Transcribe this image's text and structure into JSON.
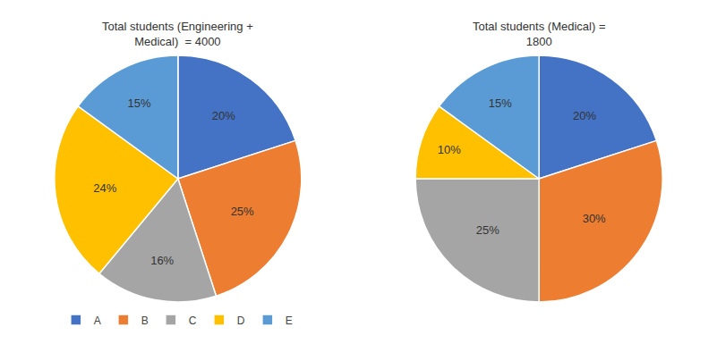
{
  "chart_data": [
    {
      "type": "pie",
      "title": "Total students (Engineering +\nMedical)  = 4000",
      "categories": [
        "A",
        "B",
        "C",
        "D",
        "E"
      ],
      "values": [
        20,
        25,
        16,
        24,
        15
      ],
      "value_labels": [
        "20%",
        "25%",
        "16%",
        "24%",
        "15%"
      ],
      "colors": [
        "#4472c4",
        "#ed7d31",
        "#a5a5a5",
        "#ffc000",
        "#5b9bd5"
      ],
      "data_labels": true,
      "legend": "bottom"
    },
    {
      "type": "pie",
      "title": "Total students (Medical) =\n1800",
      "categories": [
        "A",
        "B",
        "C",
        "D",
        "E"
      ],
      "values": [
        20,
        30,
        25,
        10,
        15
      ],
      "value_labels": [
        "20%",
        "30%",
        "25%",
        "10%",
        "15%"
      ],
      "colors": [
        "#4472c4",
        "#ed7d31",
        "#a5a5a5",
        "#ffc000",
        "#5b9bd5"
      ],
      "data_labels": true,
      "legend": "bottom"
    }
  ]
}
